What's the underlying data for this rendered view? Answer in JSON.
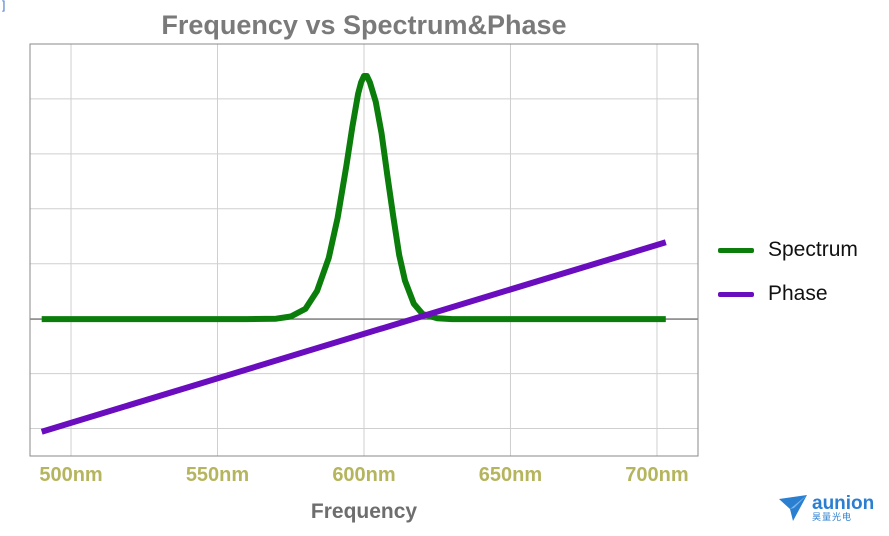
{
  "corner_mark": "]",
  "chart_data": {
    "type": "line",
    "title": "Frequency vs Spectrum&Phase",
    "xlabel": "Frequency",
    "ylabel": "",
    "x_ticks": [
      {
        "value": 500,
        "label": "500nm"
      },
      {
        "value": 550,
        "label": "550nm"
      },
      {
        "value": 600,
        "label": "600nm"
      },
      {
        "value": 650,
        "label": "650nm"
      },
      {
        "value": 700,
        "label": "700nm"
      }
    ],
    "xlim": [
      486,
      714
    ],
    "ylim": [
      -1.07,
      2.15
    ],
    "grid": true,
    "legend_position": "right",
    "series": [
      {
        "name": "Spectrum",
        "color": "#0b7d0b",
        "points": [
          [
            490,
            0
          ],
          [
            560,
            0
          ],
          [
            570,
            0.003
          ],
          [
            575,
            0.02
          ],
          [
            580,
            0.08
          ],
          [
            584,
            0.22
          ],
          [
            588,
            0.48
          ],
          [
            591,
            0.79
          ],
          [
            594,
            1.2
          ],
          [
            596,
            1.5
          ],
          [
            598,
            1.76
          ],
          [
            599,
            1.85
          ],
          [
            600,
            1.9
          ],
          [
            601,
            1.9
          ],
          [
            602,
            1.85
          ],
          [
            604,
            1.7
          ],
          [
            606,
            1.45
          ],
          [
            608,
            1.12
          ],
          [
            610,
            0.8
          ],
          [
            612,
            0.5
          ],
          [
            614,
            0.3
          ],
          [
            617,
            0.12
          ],
          [
            620,
            0.04
          ],
          [
            625,
            0.007
          ],
          [
            630,
            0
          ],
          [
            650,
            0
          ],
          [
            680,
            0
          ],
          [
            703,
            0
          ]
        ]
      },
      {
        "name": "Phase",
        "color": "#6a0dbf",
        "points": [
          [
            490,
            -0.88
          ],
          [
            703,
            0.6
          ]
        ]
      }
    ]
  },
  "brand": {
    "name": "aunion",
    "sub": "昊量光电",
    "color": "#2b7fd1"
  }
}
